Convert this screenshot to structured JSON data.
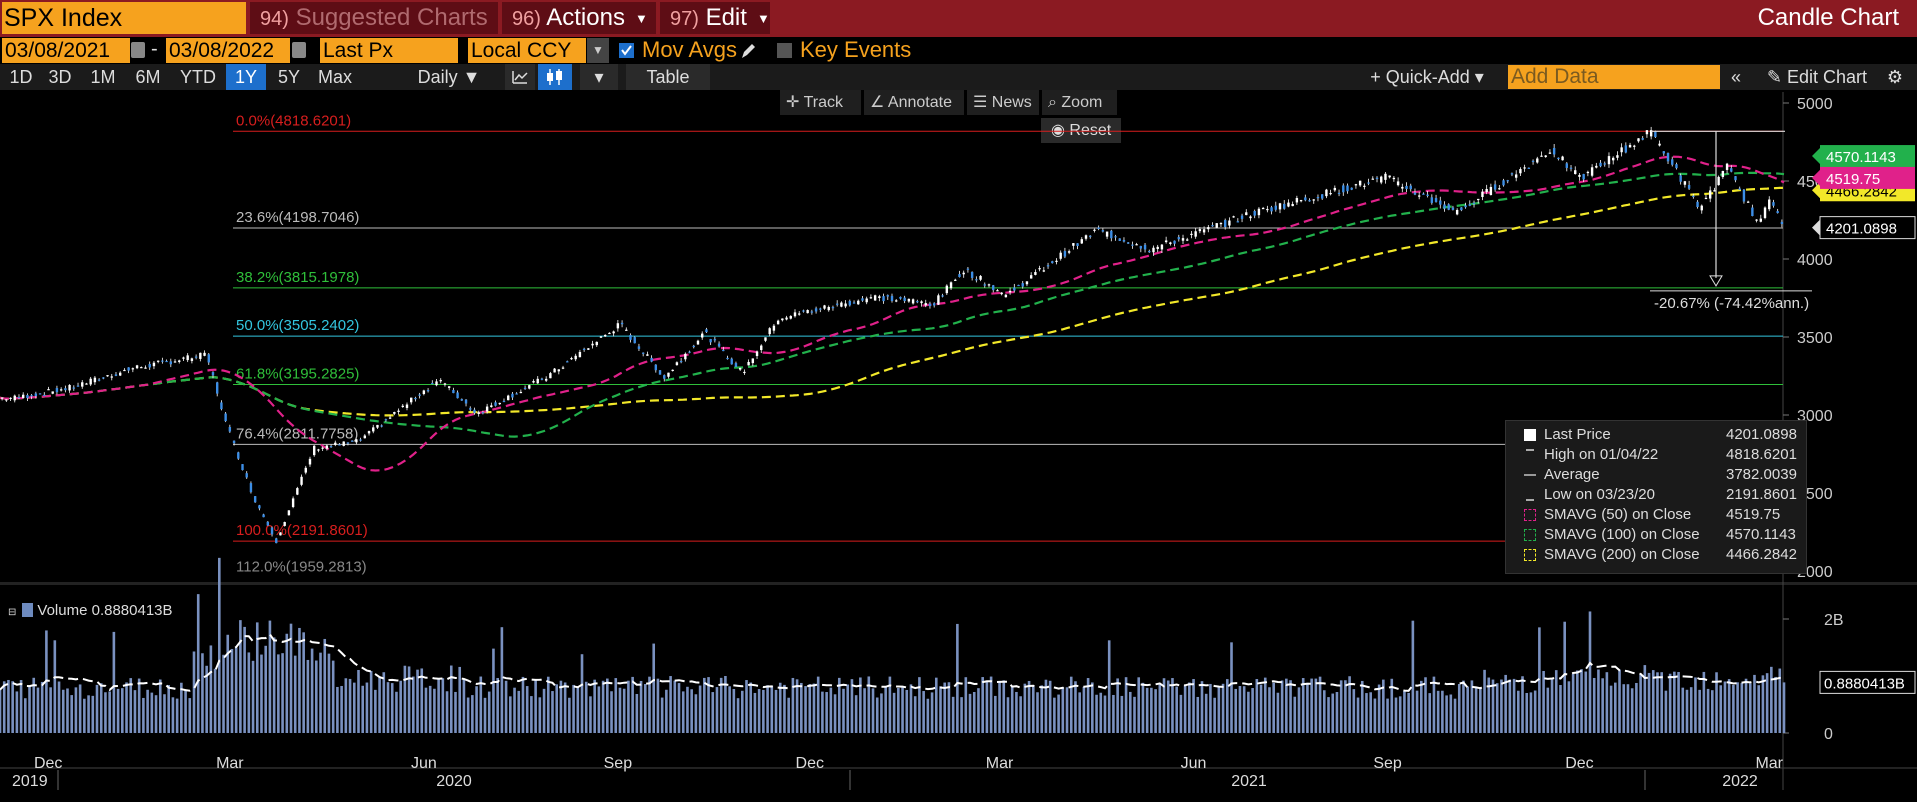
{
  "toolbar": {
    "ticker": "SPX Index",
    "suggested": {
      "num": "94)",
      "label": "Suggested Charts"
    },
    "actions": {
      "num": "96)",
      "label": "Actions"
    },
    "edit": {
      "num": "97)",
      "label": "Edit"
    },
    "window_title": "Candle Chart"
  },
  "options": {
    "start_date": "03/08/2021",
    "end_date": "03/08/2022",
    "date_sep": "-",
    "field": "Last Px",
    "currency": "Local CCY",
    "mov_avgs": "Mov Avgs",
    "key_events": "Key Events"
  },
  "ranges": [
    "1D",
    "3D",
    "1M",
    "6M",
    "YTD",
    "1Y",
    "5Y",
    "Max"
  ],
  "active_range": "1Y",
  "period": "Daily",
  "table_label": "Table",
  "quick_add": "Quick-Add",
  "add_data_placeholder": "Add Data",
  "edit_chart": "Edit Chart",
  "tools": {
    "track": "Track",
    "annotate": "Annotate",
    "news": "News",
    "zoom": "Zoom",
    "reset": "Reset"
  },
  "colors": {
    "accent": "#f6a21e",
    "header_bg": "#8b1a22",
    "sma50": "#e0218a",
    "sma100": "#22b14c",
    "sma200": "#f2e829",
    "fib_red": "#d81e1e",
    "fib_green": "#2fbf3a",
    "fib_cyan": "#33c6e0",
    "candles": "#3c8ee6",
    "volume": "#7a91c0"
  },
  "chart_data": {
    "type": "candlestick",
    "price_axis": {
      "ticks": [
        5000,
        4500,
        4000,
        3500,
        3000,
        2500,
        2000
      ],
      "ylim": [
        1950,
        5030
      ]
    },
    "time_axis": {
      "months": [
        "Dec",
        "Mar",
        "Jun",
        "Sep",
        "Dec",
        "Mar",
        "Jun",
        "Sep",
        "Dec",
        "Mar"
      ],
      "years": [
        "2019",
        "2020",
        "2021",
        "2022"
      ]
    },
    "price_points": [
      [
        "2019-11-20",
        3110
      ],
      [
        "2019-12-15",
        3170
      ],
      [
        "2020-01-15",
        3300
      ],
      [
        "2020-02-19",
        3386
      ],
      [
        "2020-02-28",
        2954
      ],
      [
        "2020-03-12",
        2480
      ],
      [
        "2020-03-23",
        2192
      ],
      [
        "2020-04-10",
        2790
      ],
      [
        "2020-05-01",
        2830
      ],
      [
        "2020-06-08",
        3230
      ],
      [
        "2020-06-26",
        3010
      ],
      [
        "2020-07-30",
        3250
      ],
      [
        "2020-09-02",
        3580
      ],
      [
        "2020-09-23",
        3240
      ],
      [
        "2020-10-12",
        3530
      ],
      [
        "2020-10-30",
        3270
      ],
      [
        "2020-11-16",
        3620
      ],
      [
        "2020-12-31",
        3756
      ],
      [
        "2021-01-29",
        3714
      ],
      [
        "2021-02-12",
        3935
      ],
      [
        "2021-03-04",
        3768
      ],
      [
        "2021-04-16",
        4185
      ],
      [
        "2021-05-12",
        4063
      ],
      [
        "2021-06-30",
        4297
      ],
      [
        "2021-08-31",
        4523
      ],
      [
        "2021-10-04",
        4300
      ],
      [
        "2021-11-18",
        4705
      ],
      [
        "2021-12-01",
        4513
      ],
      [
        "2022-01-04",
        4818.6201
      ],
      [
        "2022-01-27",
        4326
      ],
      [
        "2022-02-09",
        4587
      ],
      [
        "2022-02-24",
        4225
      ],
      [
        "2022-03-02",
        4387
      ],
      [
        "2022-03-08",
        4201.0898
      ]
    ],
    "fibonacci": [
      {
        "label": "0.0%(4818.6201)",
        "value": 4818.6201
      },
      {
        "label": "23.6%(4198.7046)",
        "value": 4198.7046
      },
      {
        "label": "38.2%(3815.1978)",
        "value": 3815.1978
      },
      {
        "label": "50.0%(3505.2402)",
        "value": 3505.2402
      },
      {
        "label": "61.8%(3195.2825)",
        "value": 3195.2825
      },
      {
        "label": "76.4%(2811.7758)",
        "value": 2811.7758
      },
      {
        "label": "100.0%(2191.8601)",
        "value": 2191.8601
      },
      {
        "label": "112.0%(1959.2813)",
        "value": 1959.2813
      }
    ],
    "change_annotation": "-20.67% (-74.42%ann.)",
    "price_tags": [
      {
        "text": "4519.75",
        "value": 4519.75,
        "color": "#e0218a"
      },
      {
        "text": "4570.1143",
        "value": 4570.1143,
        "color": "#22b14c"
      },
      {
        "text": "4466.2842",
        "value": 4466.2842,
        "color": "#f2e829"
      },
      {
        "text": "4201.0898",
        "value": 4201.0898,
        "color": "#000000"
      }
    ],
    "legend": [
      {
        "label": "Last Price",
        "value": "4201.0898"
      },
      {
        "label": "High on 01/04/22",
        "value": "4818.6201"
      },
      {
        "label": "Average",
        "value": "3782.0039"
      },
      {
        "label": "Low on 03/23/20",
        "value": "2191.8601"
      },
      {
        "label": "SMAVG (50)  on Close",
        "value": "4519.75"
      },
      {
        "label": "SMAVG (100)  on Close",
        "value": "4570.1143"
      },
      {
        "label": "SMAVG (200)  on Close",
        "value": "4466.2842"
      }
    ],
    "volume": {
      "title": "Volume",
      "last": "0.8880413B",
      "last_value_b": 0.888,
      "ticks": [
        "2B",
        "0"
      ],
      "ylim": [
        0,
        2.6
      ]
    }
  }
}
